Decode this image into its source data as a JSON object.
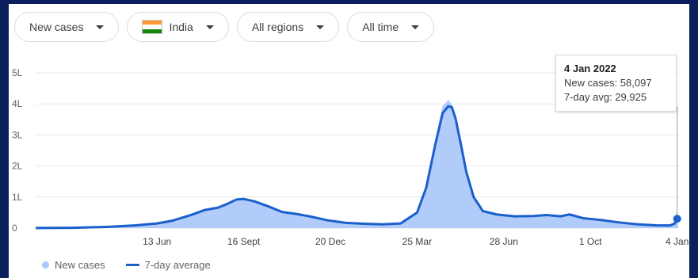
{
  "filters": {
    "metric": "New cases",
    "country": "India",
    "region": "All regions",
    "time": "All time"
  },
  "tooltip": {
    "date": "4 Jan 2022",
    "new_cases": "New cases: 58,097",
    "avg": "7-day avg: 29,925"
  },
  "legend": {
    "new_cases": "New cases",
    "avg": "7-day average"
  },
  "colors": {
    "area": "#a8c7fa",
    "line": "#1a5fcc",
    "flag_saffron": "#ff9933",
    "flag_white": "#ffffff",
    "flag_green": "#138808"
  },
  "chart_data": {
    "type": "area",
    "y_tick_labels": [
      "0",
      "1L",
      "2L",
      "3L",
      "4L",
      "5L"
    ],
    "y_tick_values": [
      0,
      100000,
      200000,
      300000,
      400000,
      500000
    ],
    "ylim": [
      0,
      500000
    ],
    "x_tick_labels": [
      "13 Jun",
      "16 Sept",
      "20 Dec",
      "25 Mar",
      "28 Jun",
      "1 Oct",
      "4 Jan"
    ],
    "x_tick_days": [
      133,
      228,
      323,
      418,
      513,
      608,
      703
    ],
    "xlim": [
      0,
      705
    ],
    "grid": true,
    "legend_position": "bottom-left",
    "series": [
      {
        "name": "7-day average",
        "x": [
          0,
          40,
          80,
          110,
          133,
          150,
          170,
          185,
          200,
          210,
          220,
          228,
          240,
          255,
          270,
          285,
          300,
          320,
          340,
          360,
          380,
          400,
          418,
          428,
          438,
          446,
          452,
          456,
          460,
          466,
          472,
          480,
          490,
          505,
          525,
          545,
          560,
          575,
          585,
          600,
          620,
          640,
          660,
          680,
          695,
          700,
          703
        ],
        "y": [
          200,
          1000,
          4000,
          9000,
          15000,
          24000,
          42000,
          58000,
          66000,
          78000,
          92000,
          94000,
          86000,
          70000,
          52000,
          46000,
          38000,
          25000,
          17000,
          14000,
          12000,
          15000,
          50000,
          130000,
          270000,
          370000,
          392000,
          390000,
          355000,
          270000,
          180000,
          100000,
          55000,
          44000,
          38000,
          39000,
          42000,
          38000,
          44000,
          32000,
          26000,
          18000,
          12000,
          9000,
          8500,
          14000,
          29925
        ]
      },
      {
        "name": "New cases",
        "x": [
          0,
          40,
          80,
          110,
          133,
          150,
          170,
          185,
          200,
          210,
          220,
          228,
          240,
          255,
          270,
          285,
          300,
          320,
          340,
          360,
          380,
          400,
          418,
          428,
          438,
          446,
          450,
          452,
          456,
          460,
          466,
          472,
          480,
          490,
          505,
          525,
          545,
          560,
          575,
          585,
          600,
          620,
          640,
          660,
          680,
          695,
          700,
          703
        ],
        "y": [
          200,
          1000,
          4000,
          9000,
          15000,
          24000,
          42000,
          60000,
          68000,
          80000,
          96000,
          97000,
          86000,
          70000,
          52000,
          46000,
          38000,
          25000,
          17000,
          14000,
          12000,
          15000,
          52000,
          135000,
          285000,
          395000,
          405000,
          414000,
          398000,
          360000,
          275000,
          185000,
          100000,
          55000,
          44000,
          38000,
          39000,
          42000,
          38000,
          44000,
          32000,
          26000,
          18000,
          12000,
          9000,
          8500,
          20000,
          58097
        ]
      }
    ]
  }
}
